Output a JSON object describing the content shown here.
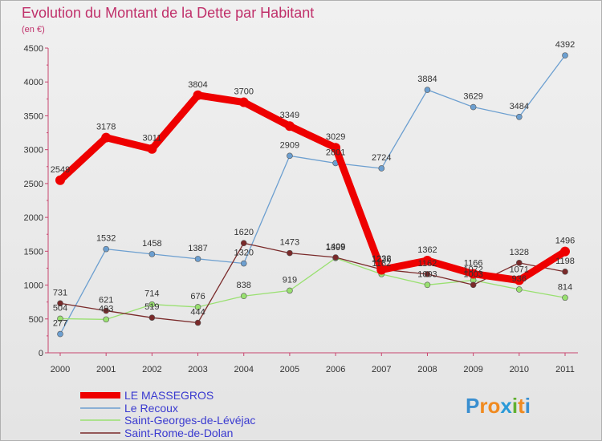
{
  "chart_data": {
    "type": "line",
    "title": "Evolution du Montant de la Dette par Habitant",
    "subtitle": "(en €)",
    "xlabel": "",
    "ylabel": "",
    "ylim": [
      0,
      4500
    ],
    "yticks": [
      "0",
      "500",
      "1000",
      "1500",
      "2000",
      "2500",
      "3000",
      "3500",
      "4000",
      "4500"
    ],
    "categories": [
      "2000",
      "2001",
      "2002",
      "2003",
      "2004",
      "2005",
      "2006",
      "2007",
      "2008",
      "2009",
      "2010",
      "2011"
    ],
    "grid": false,
    "legend": "bottom-left",
    "series": [
      {
        "name": "LE MASSEGROS",
        "color": "#ee0000",
        "values": [
          2549,
          3178,
          3011,
          3804,
          3700,
          3349,
          3029,
          1226,
          1362,
          1166,
          1071,
          1496
        ]
      },
      {
        "name": "Le Recoux",
        "color": "#6c9fd0",
        "values": [
          277,
          1532,
          1458,
          1387,
          1320,
          2909,
          2801,
          2724,
          3884,
          3629,
          3484,
          4392
        ]
      },
      {
        "name": "Saint-Georges-de-Lévéjac",
        "color": "#99e070",
        "values": [
          504,
          493,
          714,
          676,
          838,
          919,
          1399,
          1162,
          1003,
          1072,
          936,
          814
        ]
      },
      {
        "name": "Saint-Rome-de-Dolan",
        "color": "#7a2a2a",
        "values": [
          731,
          621,
          519,
          444,
          1620,
          1473,
          1409,
          1232,
          1162,
          1003,
          1328,
          1198
        ]
      }
    ]
  },
  "brand": {
    "logo_text": "Proxiti",
    "letters": [
      "P",
      "r",
      "o",
      "x",
      "i",
      "t",
      "i"
    ],
    "letter_colors": [
      "#3a8fd0",
      "#f08a20",
      "#f08a20",
      "#2a9ad8",
      "#60b030",
      "#f08a20",
      "#3a8fd0"
    ]
  }
}
